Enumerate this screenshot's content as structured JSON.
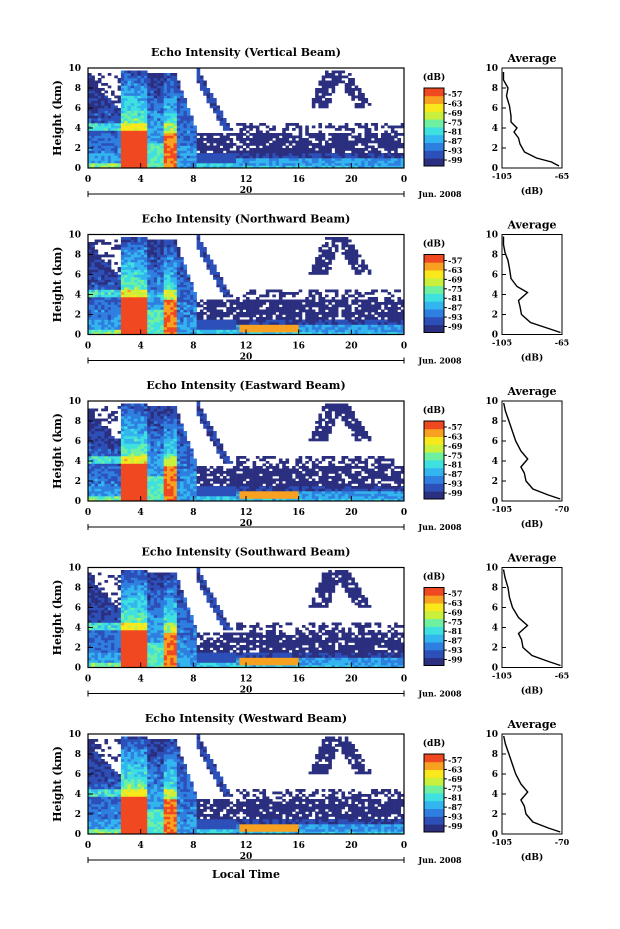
{
  "common": {
    "ylabel": "Height (km)",
    "xlabel": "Local Time",
    "date_label": "Jun. 2008",
    "date_day": "20",
    "colorbar_title": "(dB)",
    "avg_title": "Average",
    "avg_xlabel": "(dB)",
    "colorbar_ticks": [
      "-57",
      "-63",
      "-69",
      "-75",
      "-81",
      "-87",
      "-93",
      "-99"
    ],
    "colormap": [
      "#2b2f7f",
      "#2d4fb8",
      "#2f7fe0",
      "#33b5ef",
      "#3fe0e0",
      "#6ff0a0",
      "#c8f03c",
      "#f8e81c",
      "#f8a020",
      "#f04820"
    ]
  },
  "chart_data": [
    {
      "type": "heatmap",
      "title": "Echo Intensity (Vertical Beam)",
      "x_ticks": [
        "0",
        "4",
        "8",
        "12",
        "16",
        "20",
        "0"
      ],
      "y_ticks": [
        "0",
        "2",
        "4",
        "6",
        "8",
        "10"
      ],
      "xlim": [
        0,
        24
      ],
      "ylim": [
        0,
        10
      ],
      "avg_profile": {
        "xlim": [
          -105,
          -65
        ],
        "x_ticks": [
          "-105",
          "-65"
        ],
        "points": [
          [
            -67,
            0.2
          ],
          [
            -72,
            0.6
          ],
          [
            -82,
            1.0
          ],
          [
            -90,
            1.6
          ],
          [
            -93,
            2.4
          ],
          [
            -94,
            3.0
          ],
          [
            -97,
            3.6
          ],
          [
            -95,
            4.0
          ],
          [
            -99,
            4.6
          ],
          [
            -99,
            5.2
          ],
          [
            -100,
            6.2
          ],
          [
            -102,
            7.2
          ],
          [
            -101,
            8.0
          ],
          [
            -104,
            8.8
          ],
          [
            -104,
            9.6
          ]
        ]
      }
    },
    {
      "type": "heatmap",
      "title": "Echo Intensity (Northward Beam)",
      "x_ticks": [
        "0",
        "4",
        "8",
        "12",
        "16",
        "20",
        "0"
      ],
      "y_ticks": [
        "0",
        "2",
        "4",
        "6",
        "8",
        "10"
      ],
      "xlim": [
        0,
        24
      ],
      "ylim": [
        0,
        10
      ],
      "avg_profile": {
        "xlim": [
          -105,
          -65
        ],
        "x_ticks": [
          "-105",
          "-65"
        ],
        "points": [
          [
            -66,
            0.2
          ],
          [
            -74,
            0.6
          ],
          [
            -86,
            1.2
          ],
          [
            -92,
            2.0
          ],
          [
            -93,
            2.8
          ],
          [
            -94,
            3.4
          ],
          [
            -88,
            4.2
          ],
          [
            -95,
            4.8
          ],
          [
            -99,
            5.6
          ],
          [
            -100,
            6.6
          ],
          [
            -101,
            7.4
          ],
          [
            -103,
            8.2
          ],
          [
            -104,
            9.0
          ],
          [
            -104,
            9.8
          ]
        ]
      }
    },
    {
      "type": "heatmap",
      "title": "Echo Intensity (Eastward Beam)",
      "x_ticks": [
        "0",
        "4",
        "8",
        "12",
        "16",
        "20",
        "0"
      ],
      "y_ticks": [
        "0",
        "2",
        "4",
        "6",
        "8",
        "10"
      ],
      "xlim": [
        0,
        24
      ],
      "ylim": [
        0,
        10
      ],
      "avg_profile": {
        "xlim": [
          -105,
          -70
        ],
        "x_ticks": [
          "-105",
          "-70"
        ],
        "points": [
          [
            -71,
            0.2
          ],
          [
            -78,
            0.6
          ],
          [
            -87,
            1.2
          ],
          [
            -91,
            2.0
          ],
          [
            -92,
            2.8
          ],
          [
            -94,
            3.4
          ],
          [
            -90,
            4.2
          ],
          [
            -94,
            5.0
          ],
          [
            -97,
            6.0
          ],
          [
            -99,
            7.0
          ],
          [
            -101,
            8.0
          ],
          [
            -103,
            9.0
          ],
          [
            -104,
            9.8
          ]
        ]
      }
    },
    {
      "type": "heatmap",
      "title": "Echo Intensity (Southward Beam)",
      "x_ticks": [
        "0",
        "4",
        "8",
        "12",
        "16",
        "20",
        "0"
      ],
      "y_ticks": [
        "0",
        "2",
        "4",
        "6",
        "8",
        "10"
      ],
      "xlim": [
        0,
        24
      ],
      "ylim": [
        0,
        10
      ],
      "avg_profile": {
        "xlim": [
          -105,
          -65
        ],
        "x_ticks": [
          "-105",
          "-65"
        ],
        "points": [
          [
            -66,
            0.2
          ],
          [
            -74,
            0.6
          ],
          [
            -85,
            1.2
          ],
          [
            -91,
            2.0
          ],
          [
            -92,
            2.8
          ],
          [
            -94,
            3.4
          ],
          [
            -88,
            4.2
          ],
          [
            -94,
            5.0
          ],
          [
            -98,
            6.0
          ],
          [
            -100,
            7.0
          ],
          [
            -101,
            8.0
          ],
          [
            -103,
            9.0
          ],
          [
            -104,
            9.8
          ]
        ]
      }
    },
    {
      "type": "heatmap",
      "title": "Echo Intensity (Westward Beam)",
      "x_ticks": [
        "0",
        "4",
        "8",
        "12",
        "16",
        "20",
        "0"
      ],
      "y_ticks": [
        "0",
        "2",
        "4",
        "6",
        "8",
        "10"
      ],
      "xlim": [
        0,
        24
      ],
      "ylim": [
        0,
        10
      ],
      "avg_profile": {
        "xlim": [
          -105,
          -70
        ],
        "x_ticks": [
          "-105",
          "-70"
        ],
        "points": [
          [
            -71,
            0.2
          ],
          [
            -78,
            0.6
          ],
          [
            -87,
            1.2
          ],
          [
            -91,
            2.0
          ],
          [
            -92,
            2.8
          ],
          [
            -94,
            3.4
          ],
          [
            -90,
            4.2
          ],
          [
            -94,
            5.0
          ],
          [
            -97,
            6.0
          ],
          [
            -99,
            7.0
          ],
          [
            -101,
            8.0
          ],
          [
            -103,
            9.0
          ],
          [
            -104,
            9.8
          ]
        ]
      }
    }
  ]
}
